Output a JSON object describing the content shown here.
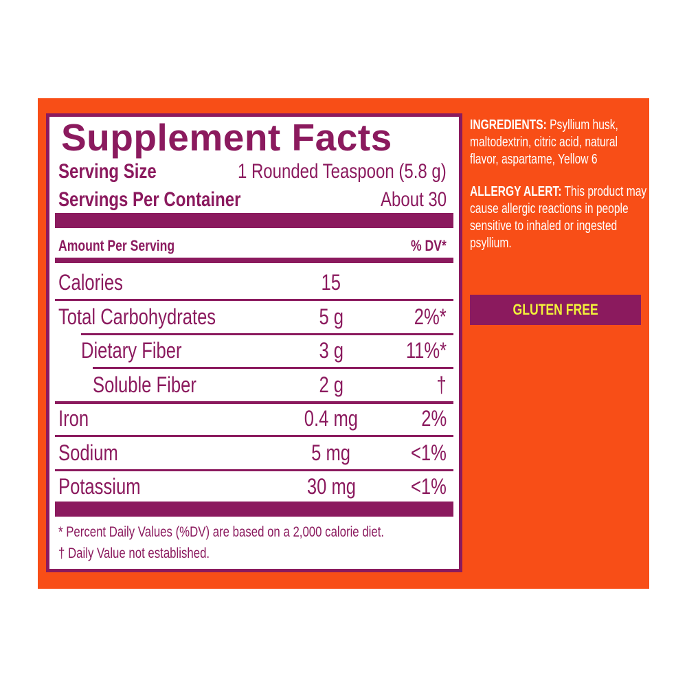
{
  "colors": {
    "orange": "#F84E17",
    "purple": "#8B1A5E",
    "yellow": "#F2F23A"
  },
  "facts": {
    "title": "Supplement Facts",
    "serving_size_label": "Serving Size",
    "serving_size_value": "1 Rounded Teaspoon (5.8 g)",
    "servings_label": "Servings Per Container",
    "servings_value": "About 30",
    "amount_header": "Amount Per Serving",
    "dv_header": "% DV*",
    "rows": [
      {
        "name": "Calories",
        "amount": "15",
        "dv": ""
      },
      {
        "name": "Total Carbohydrates",
        "amount": "5 g",
        "dv": "2%*"
      },
      {
        "name": "Dietary Fiber",
        "amount": "3 g",
        "dv": "11%*"
      },
      {
        "name": "Soluble Fiber",
        "amount": "2 g",
        "dv": "†"
      },
      {
        "name": "Iron",
        "amount": "0.4 mg",
        "dv": "2%"
      },
      {
        "name": "Sodium",
        "amount": "5 mg",
        "dv": "<1%"
      },
      {
        "name": "Potassium",
        "amount": "30 mg",
        "dv": "<1%"
      }
    ],
    "footnote_1": "* Percent Daily Values (%DV) are based on a 2,000 calorie diet.",
    "footnote_2": "† Daily Value not established."
  },
  "ingredients": {
    "label": "INGREDIENTS:",
    "text": " Psyllium husk, maltodextrin, citric acid, natural flavor, aspartame, Yellow 6"
  },
  "allergy": {
    "label": "ALLERGY ALERT:",
    "text": " This product may cause allergic reactions in people sensitive to inhaled or ingested psyllium."
  },
  "badge": "GLUTEN FREE"
}
